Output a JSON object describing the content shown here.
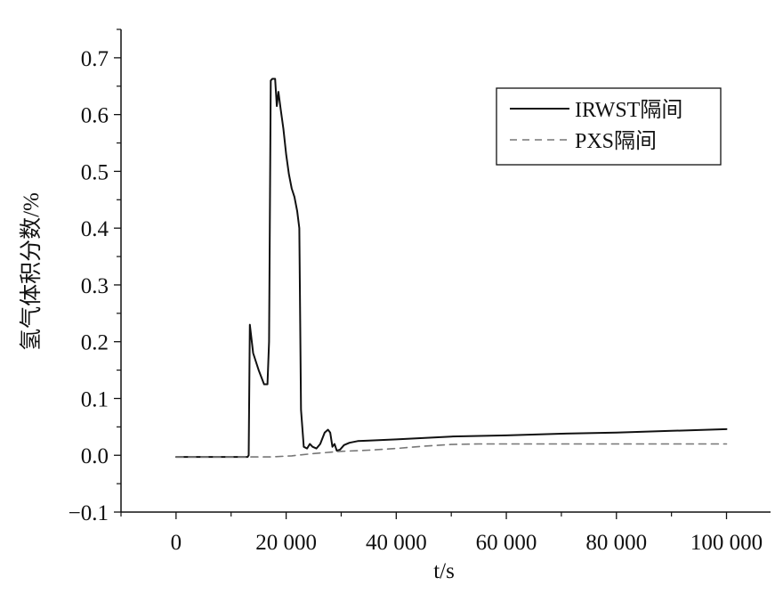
{
  "chart_data": {
    "type": "line",
    "title": "",
    "xlabel": "t/s",
    "ylabel": "氢气体积分数/%",
    "xlim": [
      -10000,
      108000
    ],
    "ylim": [
      -0.1,
      0.75
    ],
    "x_ticks": [
      0,
      20000,
      40000,
      60000,
      80000,
      100000
    ],
    "x_tick_labels": [
      "0",
      "20 000",
      "40 000",
      "60 000",
      "80 000",
      "100 000"
    ],
    "y_ticks": [
      -0.1,
      0.0,
      0.1,
      0.2,
      0.3,
      0.4,
      0.5,
      0.6,
      0.7
    ],
    "y_tick_labels": [
      "−0.1",
      "0.0",
      "0.1",
      "0.2",
      "0.3",
      "0.4",
      "0.5",
      "0.6",
      "0.7"
    ],
    "grid": false,
    "legend_position": "top-right",
    "series": [
      {
        "name": "IRWST隔间",
        "color": "#111111",
        "dash": "solid",
        "x": [
          0,
          13000,
          13200,
          13400,
          14000,
          15000,
          16000,
          16600,
          16900,
          17200,
          17500,
          18000,
          18300,
          18600,
          19000,
          19500,
          20000,
          20500,
          21000,
          21500,
          22000,
          22400,
          22700,
          23200,
          23800,
          24300,
          24800,
          25500,
          26200,
          27000,
          27600,
          28000,
          28400,
          28800,
          29200,
          29800,
          30500,
          31500,
          33000,
          35000,
          40000,
          50000,
          60000,
          70000,
          80000,
          90000,
          100000
        ],
        "y": [
          -0.003,
          -0.003,
          0.0,
          0.23,
          0.18,
          0.15,
          0.125,
          0.125,
          0.2,
          0.66,
          0.663,
          0.663,
          0.615,
          0.64,
          0.61,
          0.575,
          0.53,
          0.495,
          0.47,
          0.455,
          0.43,
          0.4,
          0.08,
          0.015,
          0.012,
          0.02,
          0.015,
          0.012,
          0.02,
          0.04,
          0.045,
          0.04,
          0.015,
          0.02,
          0.008,
          0.01,
          0.018,
          0.022,
          0.025,
          0.026,
          0.028,
          0.033,
          0.035,
          0.038,
          0.04,
          0.043,
          0.046
        ]
      },
      {
        "name": "PXS隔间",
        "color": "#777777",
        "dash": "dashed",
        "x": [
          0,
          13000,
          17000,
          21000,
          25000,
          30000,
          35000,
          40000,
          45000,
          50000,
          55000,
          60000,
          70000,
          80000,
          90000,
          100000
        ],
        "y": [
          -0.003,
          -0.003,
          -0.003,
          -0.001,
          0.003,
          0.007,
          0.009,
          0.012,
          0.016,
          0.019,
          0.02,
          0.02,
          0.02,
          0.02,
          0.02,
          0.02
        ]
      }
    ]
  }
}
